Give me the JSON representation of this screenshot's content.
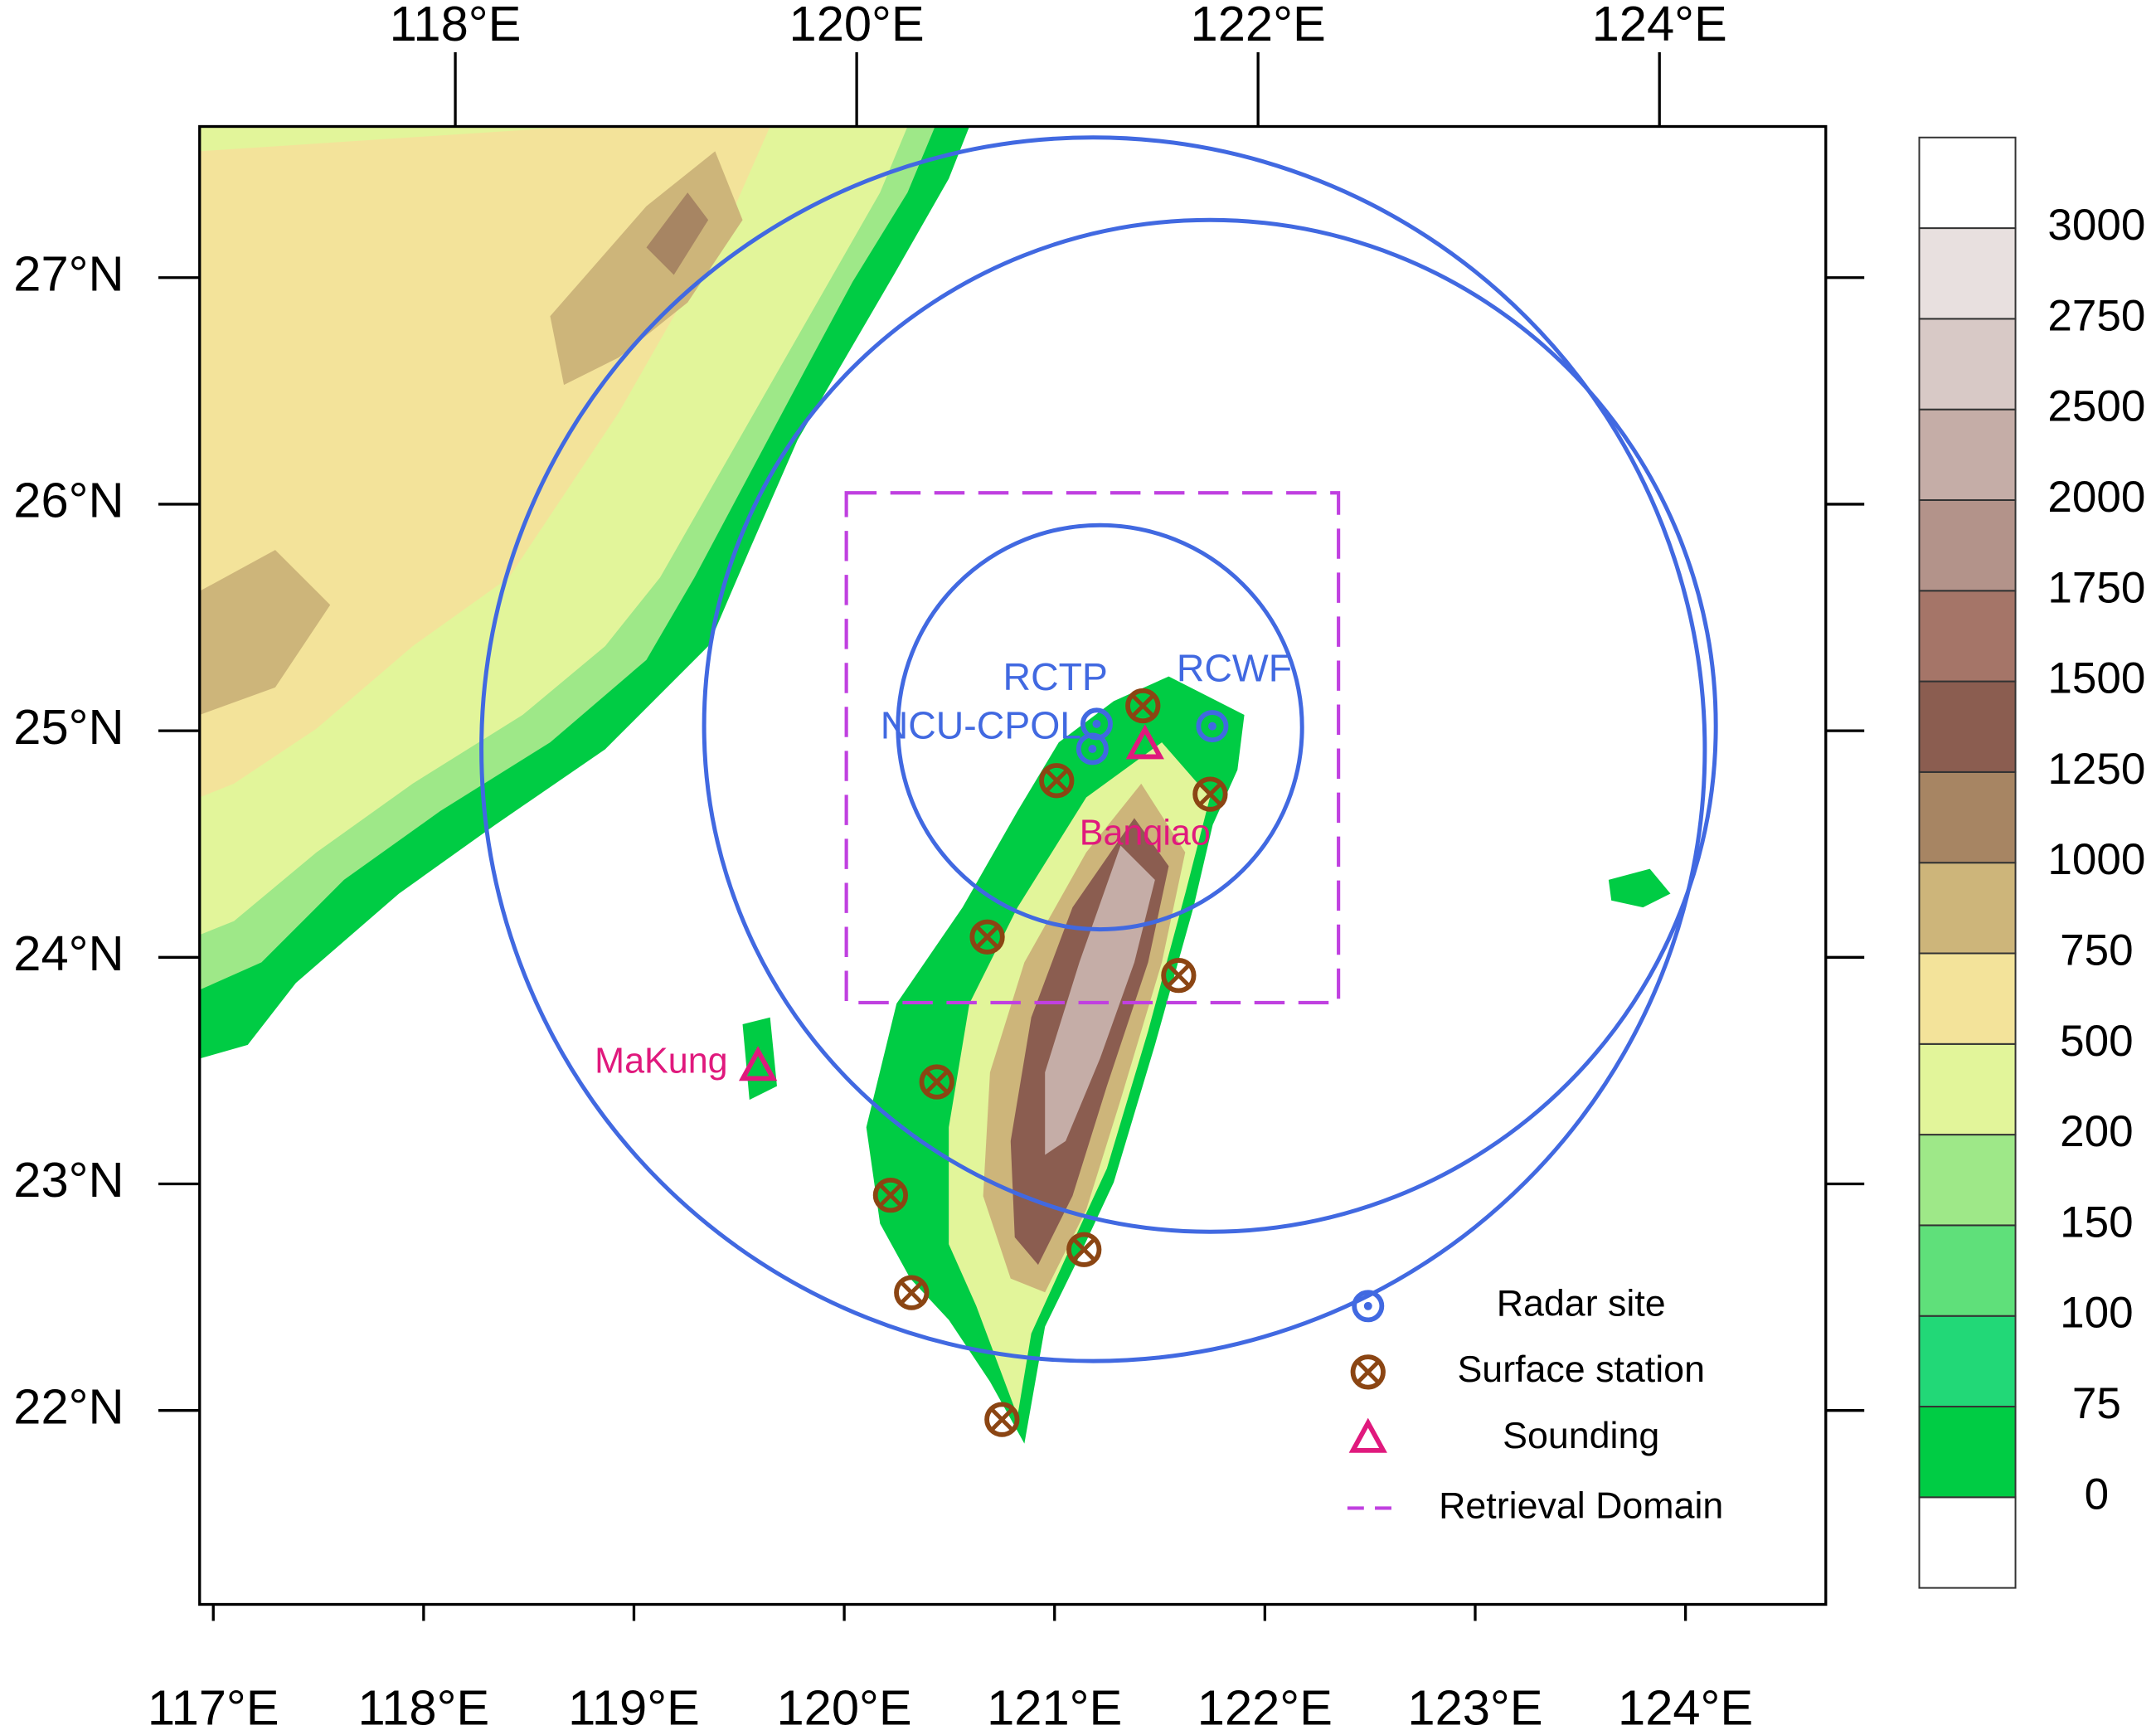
{
  "map": {
    "bottom_ticks": [
      {
        "value": 117,
        "label": "117°E"
      },
      {
        "value": 118,
        "label": "118°E"
      },
      {
        "value": 119,
        "label": "119°E"
      },
      {
        "value": 120,
        "label": "120°E"
      },
      {
        "value": 121,
        "label": "121°E"
      },
      {
        "value": 122,
        "label": "122°E"
      },
      {
        "value": 123,
        "label": "123°E"
      },
      {
        "value": 124,
        "label": "124°E"
      }
    ],
    "top_ticks": [
      {
        "value": 118,
        "label": "118°E"
      },
      {
        "value": 120,
        "label": "120°E"
      },
      {
        "value": 122,
        "label": "122°E"
      },
      {
        "value": 124,
        "label": "124°E"
      }
    ],
    "lat_ticks": [
      {
        "value": 27,
        "label": "27°N"
      },
      {
        "value": 26,
        "label": "26°N"
      },
      {
        "value": 25,
        "label": "25°N"
      },
      {
        "value": 24,
        "label": "24°N"
      },
      {
        "value": 23,
        "label": "23°N"
      },
      {
        "value": 22,
        "label": "22°N"
      }
    ],
    "xlim": [
      116.935,
      124.667
    ],
    "ylim": [
      21.144,
      27.667
    ],
    "radar_sites": [
      {
        "name": "RCTP",
        "lon": 121.2,
        "lat": 25.03
      },
      {
        "name": "NCU-CPOL",
        "lon": 121.18,
        "lat": 24.92
      },
      {
        "name": "RCWF",
        "lon": 121.75,
        "lat": 25.02
      }
    ],
    "soundings": [
      {
        "name": "Banqiao",
        "lon": 121.43,
        "lat": 24.94
      },
      {
        "name": "MaKung",
        "lon": 119.59,
        "lat": 23.52
      }
    ],
    "surface_stations": [
      {
        "lon": 121.42,
        "lat": 25.11
      },
      {
        "lon": 121.01,
        "lat": 24.78
      },
      {
        "lon": 121.74,
        "lat": 24.72
      },
      {
        "lon": 120.68,
        "lat": 24.09
      },
      {
        "lon": 121.59,
        "lat": 23.92
      },
      {
        "lon": 120.44,
        "lat": 23.45
      },
      {
        "lon": 120.22,
        "lat": 22.95
      },
      {
        "lon": 121.14,
        "lat": 22.71
      },
      {
        "lon": 120.32,
        "lat": 22.52
      },
      {
        "lon": 120.75,
        "lat": 21.96
      }
    ],
    "retrieval_domain": {
      "lon": [
        120.01,
        122.35
      ],
      "lat": [
        23.8,
        26.05
      ]
    },
    "colors": {
      "radar": "#4169e1",
      "station": "#8b4513",
      "sounding": "#e0197d",
      "domain": "#c040e0"
    },
    "legend": [
      "Radar site",
      "Surface station",
      "Sounding",
      "Retrieval Domain"
    ],
    "colorbar": {
      "levels": [
        0,
        75,
        100,
        150,
        200,
        500,
        750,
        1000,
        1250,
        1500,
        1750,
        2000,
        2500,
        2750,
        3000
      ],
      "colors": [
        "#ffffff",
        "#00cc44",
        "#22d877",
        "#5fe07a",
        "#9ee888",
        "#e2f59a",
        "#f3e39a",
        "#cdb57a",
        "#a78563",
        "#8b5d50",
        "#a57568",
        "#b3938a",
        "#c5ada7",
        "#d8c9c6",
        "#e8e0df",
        "#ffffff"
      ]
    }
  }
}
